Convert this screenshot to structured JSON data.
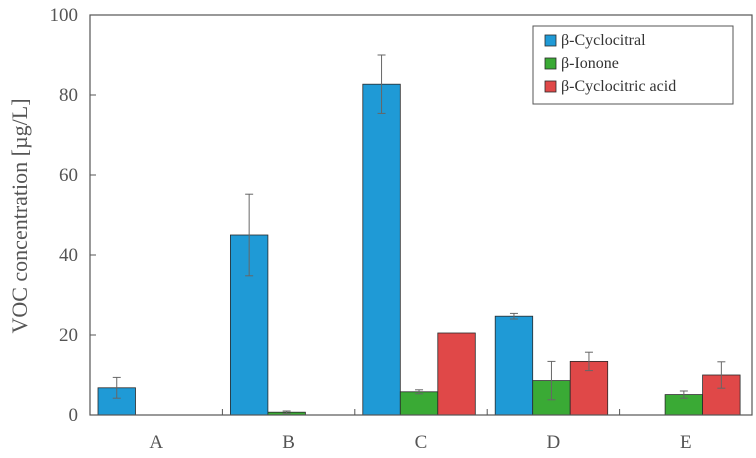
{
  "chart_data": {
    "type": "bar",
    "title": "",
    "xlabel": "",
    "ylabel": "VOC concentration [µg/L]",
    "ylim": [
      0,
      100
    ],
    "yticks": [
      0,
      20,
      40,
      60,
      80,
      100
    ],
    "categories": [
      "A",
      "B",
      "C",
      "D",
      "E"
    ],
    "grid": false,
    "legend_position": "top-right",
    "series": [
      {
        "name": "β-Cyclocitral",
        "color": "#1f9ad6",
        "values": [
          6.8,
          45.0,
          82.7,
          24.7,
          0
        ],
        "errors": [
          2.6,
          10.2,
          7.3,
          0.7,
          0
        ]
      },
      {
        "name": "β-Ionone",
        "color": "#3aaa35",
        "values": [
          0,
          0.7,
          5.8,
          8.6,
          5.1
        ],
        "errors": [
          0,
          0.3,
          0.5,
          4.8,
          0.9
        ]
      },
      {
        "name": "β-Cyclocitric acid",
        "color": "#e04848",
        "values": [
          0,
          0,
          20.5,
          13.4,
          10.0
        ],
        "errors": [
          0,
          0,
          0,
          2.3,
          3.3
        ]
      }
    ]
  }
}
